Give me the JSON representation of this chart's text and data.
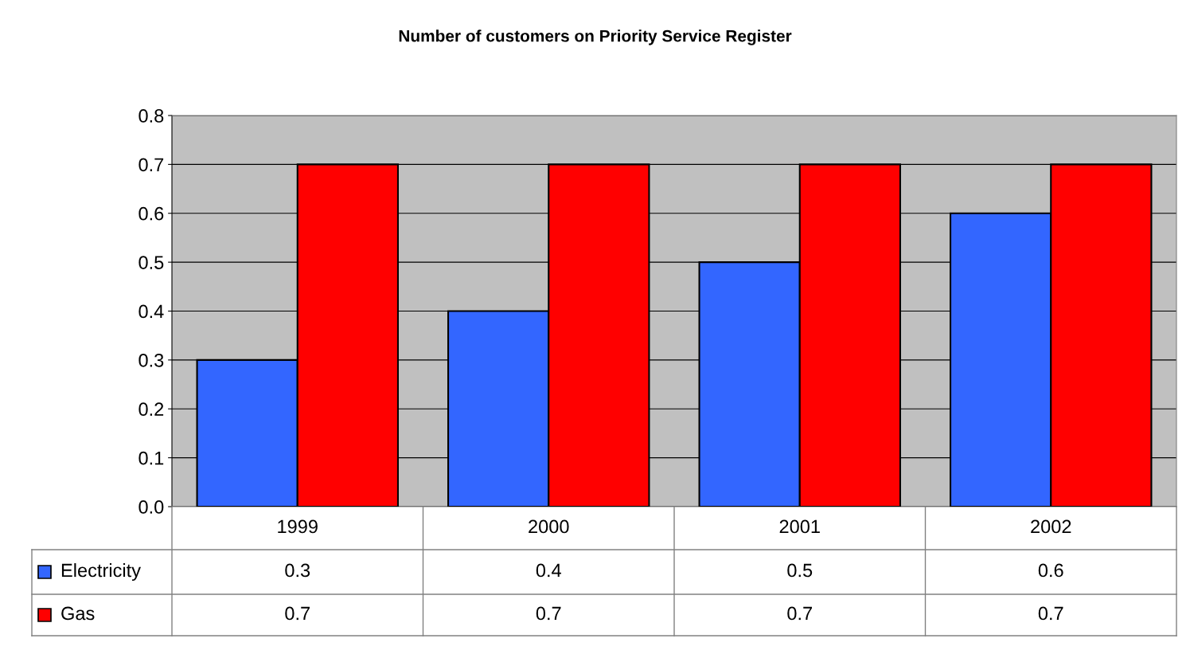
{
  "chart_data": {
    "type": "bar",
    "title": "Number of customers on Priority Service Register",
    "categories": [
      "1999",
      "2000",
      "2001",
      "2002"
    ],
    "series": [
      {
        "name": "Electricity",
        "color": "#3366ff",
        "values": [
          0.3,
          0.4,
          0.5,
          0.6
        ]
      },
      {
        "name": "Gas",
        "color": "#ff0000",
        "values": [
          0.7,
          0.7,
          0.7,
          0.7
        ]
      }
    ],
    "ylim": [
      0,
      0.8
    ],
    "yticks": [
      {
        "value": 0,
        "label": "0.0"
      },
      0.1,
      0.2,
      0.3,
      0.4,
      0.5,
      0.6,
      0.7,
      0.8
    ],
    "grid": "y",
    "legend": "bottom",
    "data_labels": true
  }
}
